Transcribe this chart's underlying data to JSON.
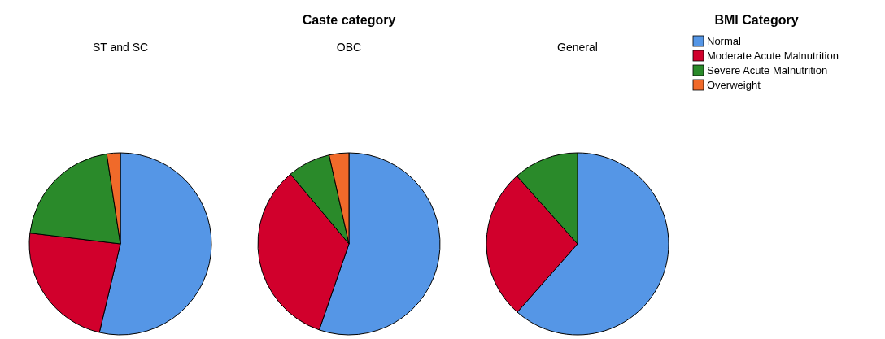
{
  "chart_data": [
    {
      "type": "pie",
      "title": "ST and SC",
      "legend": "top right",
      "legend_title": "BMI Category",
      "categories": [
        "Normal",
        "Moderate Acute Malnutrition",
        "Severe Acute Malnutrition",
        "Overweight"
      ],
      "values": [
        53.7,
        23.2,
        20.7,
        2.4
      ],
      "colors": [
        "#5596e6",
        "#d1002c",
        "#2a8a2a",
        "#f06a2a"
      ]
    },
    {
      "type": "pie",
      "title": "OBC",
      "annotations": [
        "Caste category"
      ],
      "categories": [
        null,
        null,
        null,
        null
      ],
      "values": [
        55.3,
        33.6,
        7.6,
        3.5
      ],
      "colors": [
        "#5596e6",
        "#d1002c",
        "#2a8a2a",
        "#f06a2a"
      ]
    },
    {
      "type": "pie",
      "title": "General",
      "categories": [
        null,
        null,
        null
      ],
      "values": [
        61.5,
        26.9,
        11.6
      ],
      "colors": [
        "#5596e6",
        "#d1002c",
        "#2a8a2a"
      ]
    }
  ]
}
